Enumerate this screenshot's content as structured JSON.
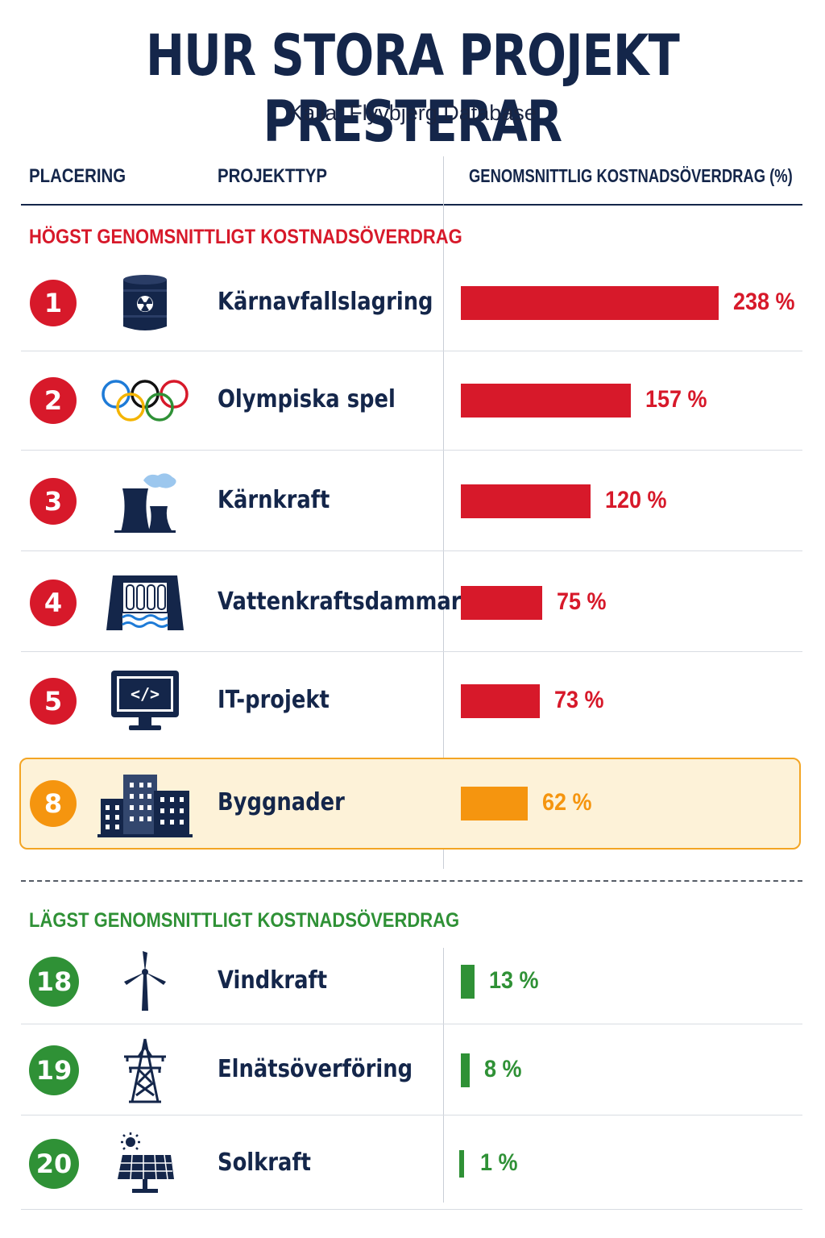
{
  "title": "HUR STORA PROJEKT PRESTERAR",
  "subtitle": "Källa: Flyvbjerg Database",
  "headers": {
    "rank": "PLACERING",
    "type": "PROJEKTTYP",
    "value": "GENOMSNITTLIG KOSTNADSÖVERDRAG (%)"
  },
  "sections": {
    "top": "HÖGST GENOMSNITTLIGT KOSTNADSÖVERDRAG",
    "bottom": "LÄGST GENOMSNITTLIGT KOSTNADSÖVERDRAG"
  },
  "colors": {
    "high": "#d7192a",
    "highlight": "#f5950f",
    "low": "#2f9136",
    "navy": "#14264a"
  },
  "chart_data": {
    "type": "bar",
    "orientation": "horizontal",
    "title": "HUR STORA PROJEKT PRESTERAR",
    "xlabel": "GENOMSNITTLIG KOSTNADSÖVERDRAG (%)",
    "categories": [
      "Kärnavfallslagring",
      "Olympiska spel",
      "Kärnkraft",
      "Vattenkraftsdammar",
      "IT-projekt",
      "Byggnader",
      "Vindkraft",
      "Elnätsöverföring",
      "Solkraft"
    ],
    "ranks": [
      "1",
      "2",
      "3",
      "4",
      "5",
      "8",
      "18",
      "19",
      "20"
    ],
    "values": [
      238,
      157,
      120,
      75,
      73,
      62,
      13,
      8,
      1
    ],
    "value_labels": [
      "238 %",
      "157 %",
      "120 %",
      "75 %",
      "73 %",
      "62 %",
      "13 %",
      "8 %",
      "1 %"
    ],
    "groups": [
      "high",
      "high",
      "high",
      "high",
      "high",
      "highlight",
      "low",
      "low",
      "low"
    ],
    "icons": [
      "radioactive-barrel-icon",
      "olympic-rings-icon",
      "cooling-tower-icon",
      "hydro-dam-icon",
      "code-monitor-icon",
      "buildings-icon",
      "wind-turbine-icon",
      "power-pylon-icon",
      "solar-panel-icon"
    ],
    "xlim": [
      0,
      238
    ]
  }
}
